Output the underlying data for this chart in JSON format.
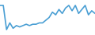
{
  "values": [
    22,
    22,
    4,
    9,
    5,
    7,
    6,
    7,
    8,
    7,
    8,
    8,
    9,
    9,
    11,
    13,
    17,
    15,
    19,
    16,
    20,
    22,
    18,
    22,
    16,
    19,
    22,
    15,
    18,
    16
  ],
  "line_color": "#4a9fd4",
  "background_color": "#ffffff",
  "ylim_min": 0,
  "ylim_max": 26,
  "linewidth": 1.2
}
